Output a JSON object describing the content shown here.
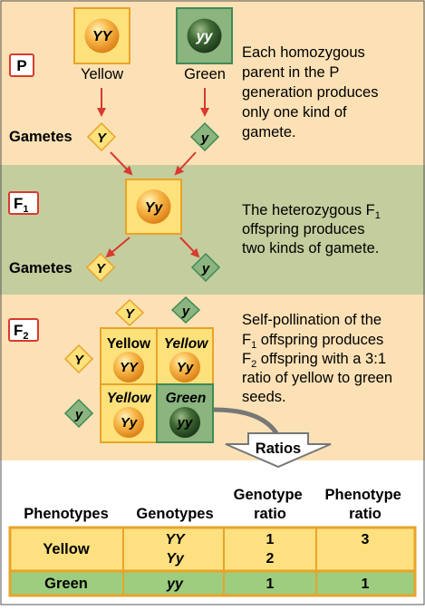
{
  "colors": {
    "band_light": "#fbe1b5",
    "band_green": "#c4cd9d",
    "yellow_fill": "#fde17a",
    "yellow_border": "#e9a32a",
    "green_fill": "#8bb47e",
    "green_border": "#3f8a57",
    "arrow_red": "#d73a30",
    "table_yellow": "#fde07f",
    "table_green": "#9dcd7e",
    "table_border": "#e9a32a"
  },
  "generations": {
    "p": {
      "label": "P",
      "yellow_parent": {
        "genotype": "YY",
        "phenotype": "Yellow"
      },
      "green_parent": {
        "genotype": "yy",
        "phenotype": "Green"
      },
      "gametes_label": "Gametes",
      "gamete_left": "Y",
      "gamete_right": "y",
      "desc_lines": [
        "Each homozygous",
        "parent in the P",
        "generation produces",
        "only one kind of",
        "gamete."
      ]
    },
    "f1": {
      "label": "F",
      "label_sub": "1",
      "genotype": "Yy",
      "gametes_label": "Gametes",
      "gamete_left": "Y",
      "gamete_right": "y",
      "desc_line1_pre": "The heterozygous F",
      "desc_line1_sub": "1",
      "desc_line2": "offspring produces",
      "desc_line3": "two kinds of gamete."
    },
    "f2": {
      "label": "F",
      "label_sub": "2",
      "top_gamete_left": "Y",
      "top_gamete_right": "y",
      "side_gamete_top": "Y",
      "side_gamete_bottom": "y",
      "cells": [
        {
          "phenotype": "Yellow",
          "genotype": "YY"
        },
        {
          "phenotype": "Yellow",
          "genotype": "Yy"
        },
        {
          "phenotype": "Yellow",
          "genotype": "Yy"
        },
        {
          "phenotype": "Green",
          "genotype": "yy"
        }
      ],
      "desc_line1": "Self-pollination of the",
      "desc_line2_pre": "F",
      "desc_line2_sub": "1",
      "desc_line2_post": " offspring produces",
      "desc_line3_pre": "F",
      "desc_line3_sub": "2",
      "desc_line3_post": " offspring with a 3:1",
      "desc_line4": "ratio of yellow to green",
      "desc_line5": "seeds."
    }
  },
  "ratios": {
    "arrow_label": "Ratios",
    "headers": {
      "phenotypes": "Phenotypes",
      "genotypes": "Genotypes",
      "genotype_ratio_1": "Genotype",
      "genotype_ratio_2": "ratio",
      "phenotype_ratio_1": "Phenotype",
      "phenotype_ratio_2": "ratio"
    },
    "rows": [
      {
        "phenotype": "Yellow",
        "genotype_1": "YY",
        "genotype_2": "Yy",
        "genotype_ratio_1": "1",
        "genotype_ratio_2": "2",
        "phenotype_ratio": "3"
      },
      {
        "phenotype": "Green",
        "genotype": "yy",
        "genotype_ratio": "1",
        "phenotype_ratio": "1"
      }
    ]
  }
}
